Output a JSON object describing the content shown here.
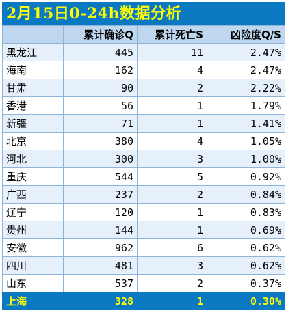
{
  "title": "2月15日0-24h数据分析",
  "headers": [
    "",
    "累计确诊Q",
    "累计死亡S",
    "凶险度Q/S"
  ],
  "rows": [
    {
      "province": "黑龙江",
      "confirmed": "445",
      "deaths": "11",
      "risk": "2.47%"
    },
    {
      "province": "海南",
      "confirmed": "162",
      "deaths": "4",
      "risk": "2.47%"
    },
    {
      "province": "甘肃",
      "confirmed": "90",
      "deaths": "2",
      "risk": "2.22%"
    },
    {
      "province": "香港",
      "confirmed": "56",
      "deaths": "1",
      "risk": "1.79%"
    },
    {
      "province": "新疆",
      "confirmed": "71",
      "deaths": "1",
      "risk": "1.41%"
    },
    {
      "province": "北京",
      "confirmed": "380",
      "deaths": "4",
      "risk": "1.05%"
    },
    {
      "province": "河北",
      "confirmed": "300",
      "deaths": "3",
      "risk": "1.00%"
    },
    {
      "province": "重庆",
      "confirmed": "544",
      "deaths": "5",
      "risk": "0.92%"
    },
    {
      "province": "广西",
      "confirmed": "237",
      "deaths": "2",
      "risk": "0.84%"
    },
    {
      "province": "辽宁",
      "confirmed": "120",
      "deaths": "1",
      "risk": "0.83%"
    },
    {
      "province": "贵州",
      "confirmed": "144",
      "deaths": "1",
      "risk": "0.69%"
    },
    {
      "province": "安徽",
      "confirmed": "962",
      "deaths": "6",
      "risk": "0.62%"
    },
    {
      "province": "四川",
      "confirmed": "481",
      "deaths": "3",
      "risk": "0.62%"
    },
    {
      "province": "山东",
      "confirmed": "537",
      "deaths": "2",
      "risk": "0.37%"
    }
  ],
  "highlight": {
    "province": "上海",
    "confirmed": "328",
    "deaths": "1",
    "risk": "0.30%"
  },
  "colors": {
    "title_bg": "#0b78c2",
    "title_text": "#ffff00",
    "header_bg": "#bfd7ee",
    "band_bg": "#e6f0fa"
  }
}
